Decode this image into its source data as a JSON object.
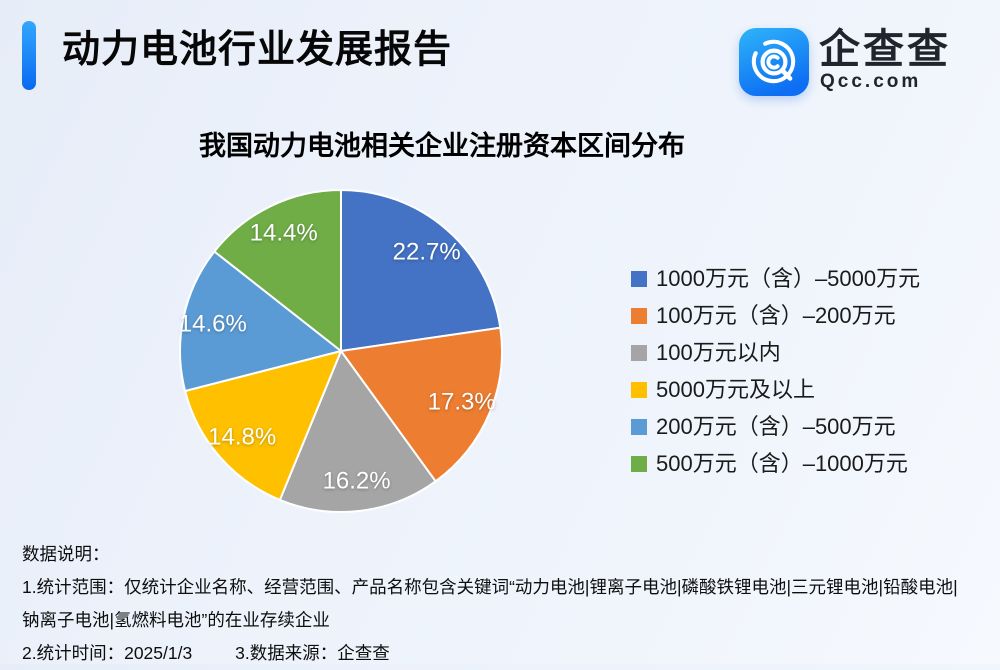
{
  "header": {
    "title": "动力电池行业发展报告",
    "logo": {
      "name": "企查查",
      "domain": "Qcc.com"
    }
  },
  "chart_data": {
    "type": "pie",
    "title": "我国动力电池相关企业注册资本区间分布",
    "categories": [
      "1000万元（含）–5000万元",
      "100万元（含）–200万元",
      "100万元以内",
      "5000万元及以上",
      "200万元（含）–500万元",
      "500万元（含）–1000万元"
    ],
    "values": [
      22.7,
      17.3,
      16.2,
      14.8,
      14.6,
      14.4
    ],
    "unit": "%",
    "colors": [
      "#4472C4",
      "#ED7D31",
      "#A5A5A5",
      "#FFC000",
      "#5B9BD5",
      "#70AD47"
    ],
    "start_angle_deg": 0,
    "direction": "clockwise",
    "legend_position": "right",
    "labels_on_slices": true
  },
  "footer": {
    "heading": "数据说明：",
    "scope": "1.统计范围：仅统计企业名称、经营范围、产品名称包含关键词“动力电池|锂离子电池|磷酸铁锂电池|三元锂电池|铅酸电池|钠离子电池|氢燃料电池”的在业存续企业",
    "time": "2.统计时间：2025/1/3",
    "source": "3.数据来源：企查查"
  },
  "brand_colors": {
    "accent_bar_top": "#33a6fe",
    "accent_bar_bottom": "#0a69f0",
    "logo_tile_top": "#2fb4f9",
    "logo_tile_bottom": "#0d6ef3"
  }
}
